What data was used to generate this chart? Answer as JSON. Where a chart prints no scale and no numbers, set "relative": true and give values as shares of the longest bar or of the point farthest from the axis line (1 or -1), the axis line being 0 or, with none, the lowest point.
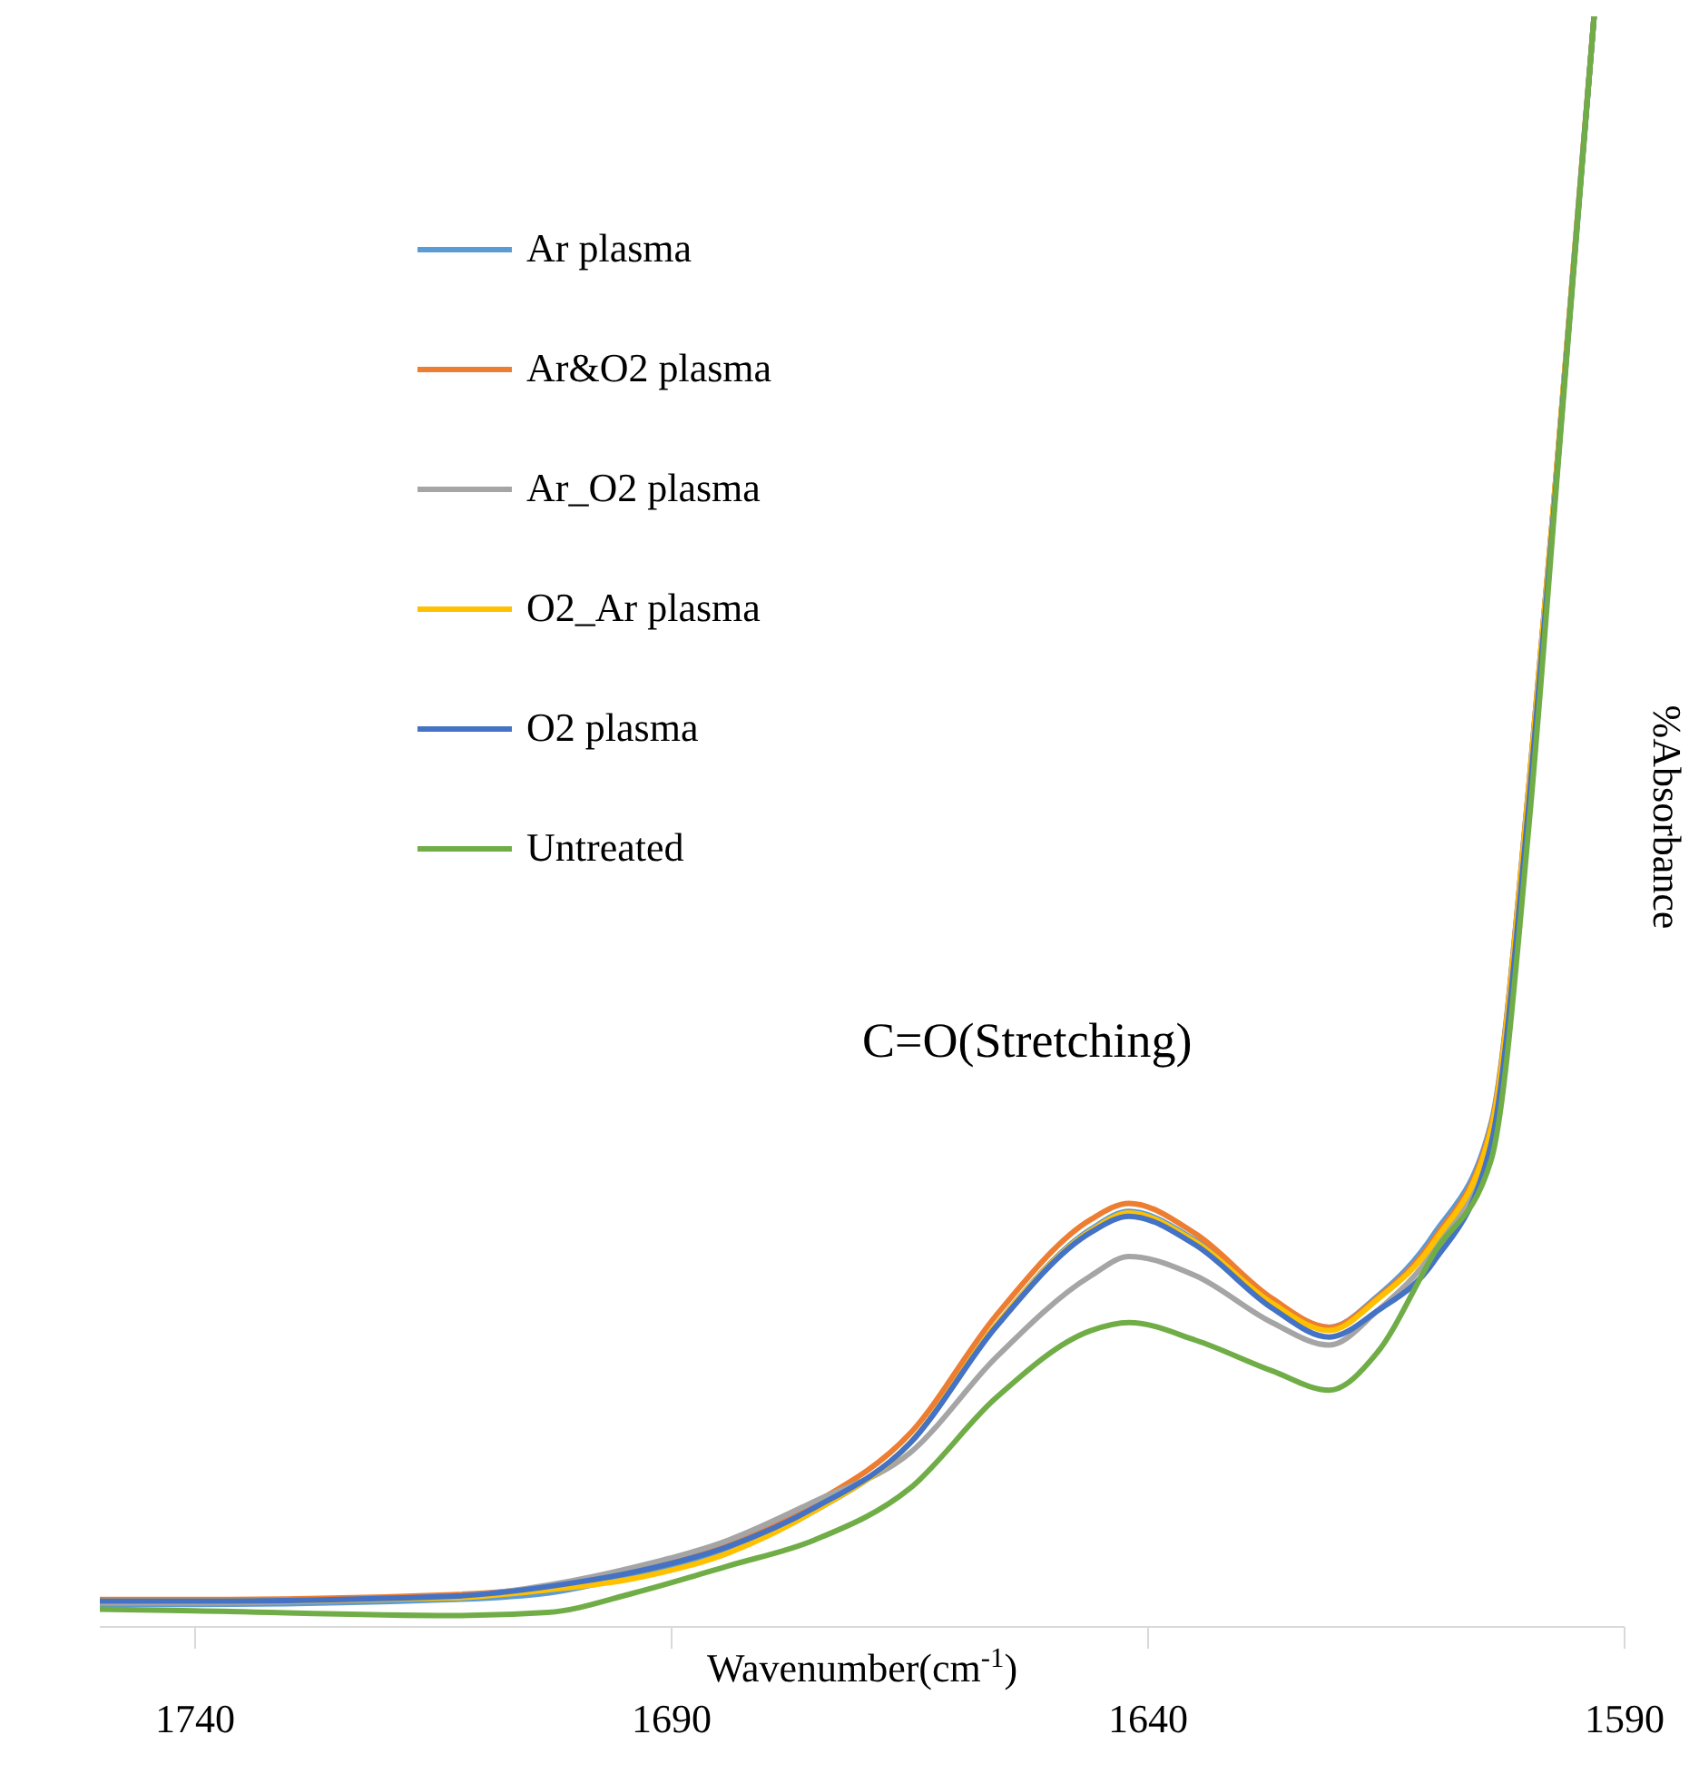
{
  "chart_data": {
    "type": "line",
    "relative": true,
    "xlabel": "Wavenumber(cm$^{-1}$)",
    "ylabel": "%Absorbance",
    "legend": "top left",
    "xlim": [
      1750,
      1590
    ],
    "xticks": [
      1740,
      1690,
      1640,
      1590
    ],
    "x": [
      1750,
      1740,
      1713,
      1703,
      1694,
      1684,
      1675,
      1665,
      1656,
      1646,
      1642,
      1635,
      1627,
      1621,
      1616,
      1610,
      1604,
      1600,
      1597,
      1593.2
    ],
    "annotations": [
      "C=O(Stretching)"
    ],
    "series": [
      {
        "name": "Ar plasma",
        "color": "#5b9bd5",
        "values": [
          0.014,
          0.014,
          0.017,
          0.021,
          0.032,
          0.047,
          0.072,
          0.114,
          0.187,
          0.247,
          0.258,
          0.24,
          0.203,
          0.186,
          0.205,
          0.244,
          0.313,
          0.525,
          0.728,
          1.0
        ]
      },
      {
        "name": "Ar&O2 plasma",
        "color": "#ed7d31",
        "values": [
          0.017,
          0.017,
          0.02,
          0.025,
          0.035,
          0.052,
          0.077,
          0.12,
          0.193,
          0.253,
          0.263,
          0.244,
          0.204,
          0.186,
          0.204,
          0.241,
          0.311,
          0.525,
          0.728,
          1.0
        ]
      },
      {
        "name": "Ar_O2 plasma",
        "color": "#a5a5a5",
        "values": [
          0.015,
          0.015,
          0.019,
          0.026,
          0.037,
          0.054,
          0.078,
          0.108,
          0.167,
          0.218,
          0.23,
          0.218,
          0.189,
          0.175,
          0.196,
          0.234,
          0.306,
          0.52,
          0.726,
          1.0
        ]
      },
      {
        "name": "O2_Ar plasma",
        "color": "#ffc000",
        "values": [
          0.016,
          0.016,
          0.018,
          0.023,
          0.03,
          0.046,
          0.072,
          0.114,
          0.187,
          0.246,
          0.257,
          0.239,
          0.201,
          0.184,
          0.203,
          0.239,
          0.309,
          0.523,
          0.728,
          1.0
        ]
      },
      {
        "name": "O2 plasma",
        "color": "#4472c4",
        "values": [
          0.016,
          0.016,
          0.019,
          0.025,
          0.034,
          0.05,
          0.074,
          0.114,
          0.186,
          0.245,
          0.255,
          0.237,
          0.198,
          0.18,
          0.196,
          0.227,
          0.3,
          0.514,
          0.723,
          1.0
        ]
      },
      {
        "name": "Untreated",
        "color": "#70ad47",
        "values": [
          0.011,
          0.01,
          0.007,
          0.009,
          0.021,
          0.038,
          0.054,
          0.086,
          0.142,
          0.184,
          0.189,
          0.178,
          0.159,
          0.147,
          0.17,
          0.232,
          0.29,
          0.5,
          0.72,
          1.0
        ]
      }
    ]
  }
}
